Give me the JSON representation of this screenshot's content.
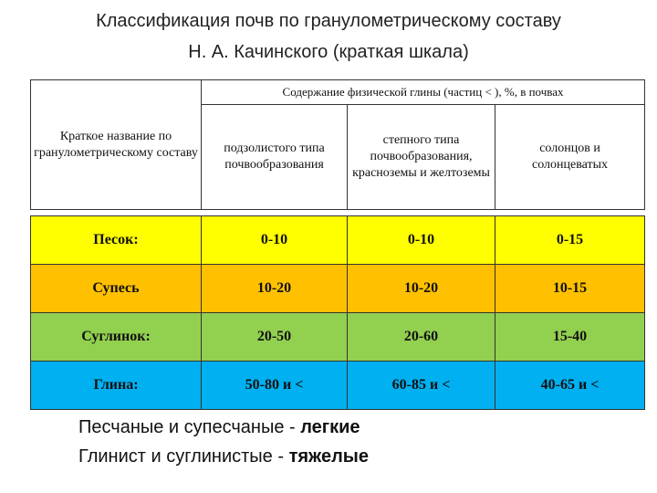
{
  "title": {
    "line1": "Классификация почв по гранулометрическому составу",
    "line2": "Н. А. Качинского (краткая шкала)"
  },
  "table": {
    "header_top": "Содержание физической глины (частиц < ), %, в почвах",
    "col_name": "Краткое название по гранулометрическому составу",
    "col1": "подзолистого типа почвообразования",
    "col2": "степного типа почвообразования, красноземы и желтоземы",
    "col3": "солонцов и солонцеватых",
    "rows": [
      {
        "name": "Песок:",
        "c1": "0-10",
        "c2": "0-10",
        "c3": "0-15"
      },
      {
        "name": "Супесь",
        "c1": "10-20",
        "c2": "10-20",
        "c3": "10-15"
      },
      {
        "name": "Суглинок:",
        "c1": "20-50",
        "c2": "20-60",
        "c3": "15-40"
      },
      {
        "name": "Глина:",
        "c1": "50-80 и <",
        "c2": "60-85 и <",
        "c3": "40-65 и <"
      }
    ],
    "row_colors": [
      "#ffff00",
      "#ffc000",
      "#92d050",
      "#00b0f0"
    ]
  },
  "notes": {
    "line1_text": "Песчаные и супесчаные - ",
    "line1_bold": "легкие",
    "line2_text": "Глинист и суглинистые - ",
    "line2_bold": "тяжелые"
  }
}
